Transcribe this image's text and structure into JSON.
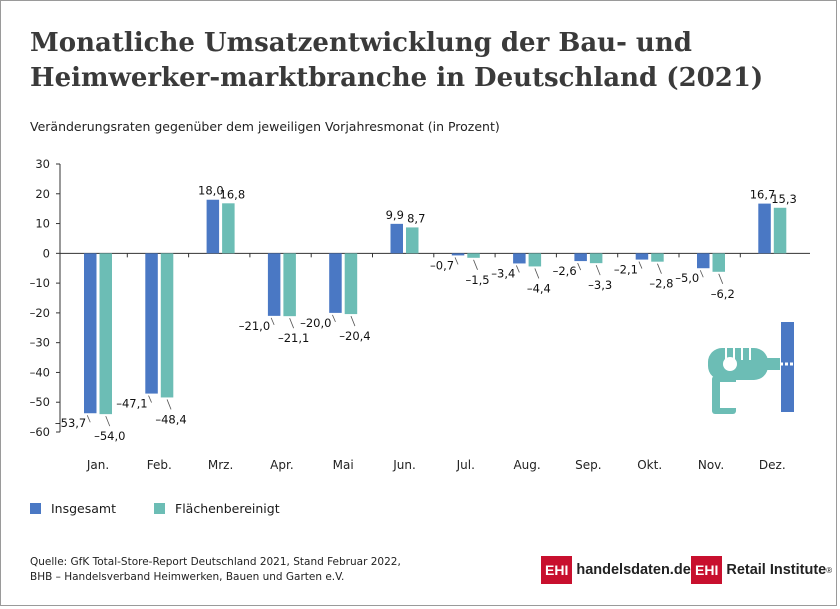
{
  "title": "Monatliche Umsatzentwicklung der Bau- und Heimwerker-marktbranche in Deutschland (2021)",
  "subtitle": "Veränderungsraten gegenüber dem jeweiligen Vorjahresmonat (in Prozent)",
  "legend": [
    {
      "label": "Insgesamt",
      "color": "#4a78c4"
    },
    {
      "label": "Flächenbereinigt",
      "color": "#6cbdb5"
    }
  ],
  "source": {
    "line1": "Quelle: GfK Total-Store-Report Deutschland 2021, Stand Februar 2022,",
    "line2": "BHB – Handelsverband Heimwerken, Bauen und Garten e.V."
  },
  "logos": {
    "left_box": "EHI",
    "left_text": "handelsdaten.de",
    "right_box": "EHI",
    "right_text": "Retail Institute",
    "right_mark": "®"
  },
  "icon": "drill-icon",
  "chart_data": {
    "type": "bar",
    "categories": [
      "Jan.",
      "Feb.",
      "Mrz.",
      "Apr.",
      "Mai",
      "Jun.",
      "Jul.",
      "Aug.",
      "Sep.",
      "Okt.",
      "Nov.",
      "Dez."
    ],
    "series": [
      {
        "name": "Insgesamt",
        "color": "#4a78c4",
        "values": [
          -53.7,
          -47.1,
          18.0,
          -21.0,
          -20.0,
          9.9,
          -0.7,
          -3.4,
          -2.6,
          -2.1,
          -5.0,
          16.7
        ],
        "labels": [
          "–53,7",
          "–47,1",
          "18,0",
          "–21,0",
          "–20,0",
          "9,9",
          "–0,7",
          "–3,4",
          "–2,6",
          "–2,1",
          "–5,0",
          "16,7"
        ]
      },
      {
        "name": "Flächenbereinigt",
        "color": "#6cbdb5",
        "values": [
          -54.0,
          -48.4,
          16.8,
          -21.1,
          -20.4,
          8.7,
          -1.5,
          -4.4,
          -3.3,
          -2.8,
          -6.2,
          15.3
        ],
        "labels": [
          "–54,0",
          "–48,4",
          "16,8",
          "–21,1",
          "–20,4",
          "8,7",
          "–1,5",
          "–4,4",
          "–3,3",
          "–2,8",
          "–6,2",
          "15,3"
        ]
      }
    ],
    "yticks": [
      30,
      20,
      10,
      0,
      -10,
      -20,
      -30,
      -40,
      -50,
      -60
    ],
    "ytick_labels": [
      "30",
      "20",
      "10",
      "0",
      "–10",
      "–20",
      "–30",
      "–40",
      "–50",
      "–60"
    ],
    "ylim": [
      -60,
      30
    ],
    "grid": false,
    "legend_position": "bottom-left"
  }
}
